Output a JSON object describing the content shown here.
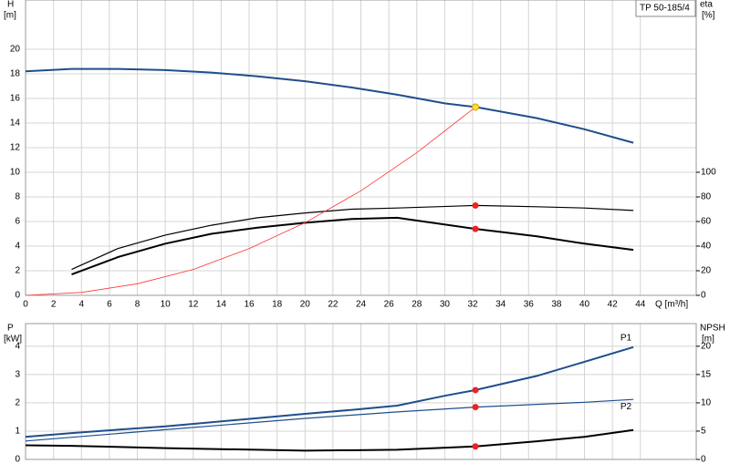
{
  "chart_data": [
    {
      "type": "line",
      "title": "TP 50-185/4",
      "ylabel": "H",
      "yunit": "[m]",
      "y2label": "eta",
      "y2unit": "[%]",
      "xlabel": "Q [m³/h]",
      "xlim": [
        0,
        48
      ],
      "xticks": [
        0,
        2,
        4,
        6,
        8,
        10,
        12,
        14,
        16,
        18,
        20,
        22,
        24,
        26,
        28,
        30,
        32,
        34,
        36,
        38,
        40,
        42,
        44
      ],
      "ylim": [
        0,
        24
      ],
      "yticks": [
        0,
        2,
        4,
        6,
        8,
        10,
        12,
        14,
        16,
        18,
        20
      ],
      "y2lim": [
        0,
        240
      ],
      "y2ticks": [
        0,
        20,
        40,
        60,
        80,
        100
      ],
      "grid": true,
      "series": [
        {
          "color": "#1f4e8c",
          "width": 2,
          "x": [
            0,
            3.3,
            6.6,
            10,
            13.3,
            16.6,
            20,
            23.3,
            26.6,
            30,
            32.2,
            36.6,
            40,
            43.5
          ],
          "values": [
            18.2,
            18.4,
            18.4,
            18.3,
            18.1,
            17.8,
            17.4,
            16.9,
            16.3,
            15.6,
            15.3,
            14.4,
            13.5,
            12.4
          ]
        },
        {
          "color": "#000000",
          "width": 1.2,
          "axis": "y2",
          "x": [
            3.3,
            6.6,
            10,
            13.3,
            16.6,
            20,
            23.3,
            26.6,
            32.2,
            36.6,
            40,
            43.5
          ],
          "values": [
            21,
            38,
            49,
            57,
            63,
            67,
            70,
            71,
            73,
            72,
            71,
            69
          ]
        },
        {
          "color": "#000000",
          "width": 2,
          "axis": "y2",
          "x": [
            3.3,
            6.6,
            10,
            13.3,
            16.6,
            20,
            23.3,
            26.6,
            32.2,
            36.6,
            40,
            43.5
          ],
          "values": [
            17,
            31,
            42,
            50,
            55,
            59,
            62,
            63,
            54,
            48,
            42,
            37
          ]
        },
        {
          "color": "#ff3333",
          "width": 0.8,
          "x": [
            0,
            4,
            8,
            12,
            16,
            20,
            24,
            28,
            32.2
          ],
          "values": [
            0,
            0.24,
            0.94,
            2.1,
            3.8,
            5.9,
            8.5,
            11.6,
            15.3
          ]
        }
      ],
      "points": [
        {
          "x": 32.2,
          "y": 15.3,
          "color": "#ffdd33"
        },
        {
          "x": 32.2,
          "y": 73,
          "axis": "y2",
          "color": "#ee2222"
        },
        {
          "x": 32.2,
          "y": 54,
          "axis": "y2",
          "color": "#ee2222"
        }
      ]
    },
    {
      "type": "line",
      "ylabel": "P",
      "yunit": "[kW]",
      "y2label": "NPSH",
      "y2unit": "[m]",
      "xlim": [
        0,
        48
      ],
      "ylim": [
        0,
        4.8
      ],
      "yticks": [
        0,
        1,
        2,
        3,
        4
      ],
      "y2lim": [
        0,
        24
      ],
      "y2ticks": [
        0,
        5,
        10,
        15,
        20
      ],
      "grid": true,
      "series": [
        {
          "name": "P1",
          "color": "#1f4e8c",
          "width": 2,
          "x": [
            0,
            3.3,
            6.6,
            10,
            13.3,
            16.6,
            20,
            23.3,
            26.6,
            30,
            32.2,
            36.6,
            40,
            43.5
          ],
          "values": [
            0.8,
            0.93,
            1.05,
            1.17,
            1.31,
            1.46,
            1.61,
            1.75,
            1.9,
            2.25,
            2.45,
            2.95,
            3.45,
            3.97
          ]
        },
        {
          "name": "P2",
          "color": "#1f4e8c",
          "width": 1.2,
          "x": [
            0,
            10,
            20,
            26.6,
            32.2,
            40,
            43.5
          ],
          "values": [
            0.65,
            1.05,
            1.45,
            1.68,
            1.85,
            2.02,
            2.12
          ]
        },
        {
          "color": "#000000",
          "width": 2,
          "axis": "y2",
          "x": [
            0,
            3.3,
            10,
            20,
            26.6,
            32.2,
            36.6,
            40,
            43.5
          ],
          "values": [
            2.5,
            2.4,
            2.0,
            1.55,
            1.7,
            2.3,
            3.2,
            4.0,
            5.2
          ]
        }
      ],
      "points": [
        {
          "x": 32.2,
          "y": 2.45,
          "color": "#ee2222"
        },
        {
          "x": 32.2,
          "y": 1.85,
          "color": "#ee2222"
        },
        {
          "x": 32.2,
          "y": 2.3,
          "axis": "y2",
          "color": "#ee2222"
        }
      ]
    }
  ]
}
